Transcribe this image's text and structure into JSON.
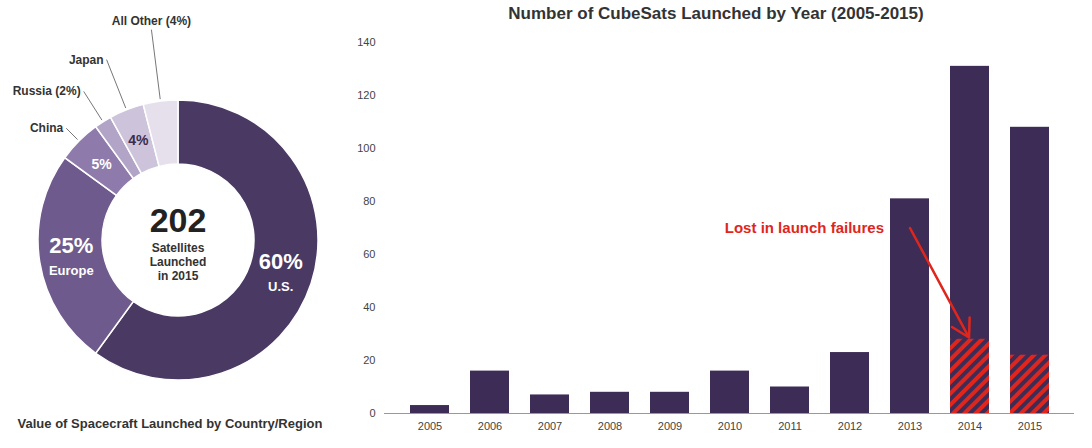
{
  "chart_data": [
    {
      "type": "donut",
      "title": "Value of Spacecraft Launched by Country/Region",
      "categories": [
        "U.S.",
        "Europe",
        "China",
        "Russia (2%)",
        "Japan",
        "All Other (4%)"
      ],
      "values": [
        60,
        25,
        5,
        2,
        4,
        4
      ],
      "value_labels": [
        "60%",
        "25%",
        "5%",
        null,
        "4%",
        null
      ],
      "data_labels": true,
      "colors": [
        "#4a3963",
        "#6e5a8c",
        "#8f7bab",
        "#b2a4c6",
        "#cdc3da",
        "#e6e0ed"
      ],
      "center_value": 202,
      "center_label": "Satellites Launched in 2015"
    },
    {
      "type": "bar",
      "title": "Number of CubeSats Launched by Year (2005-2015)",
      "categories": [
        "2005",
        "2006",
        "2007",
        "2008",
        "2009",
        "2010",
        "2011",
        "2012",
        "2013",
        "2014",
        "2015"
      ],
      "values": [
        3,
        16,
        7,
        8,
        8,
        16,
        10,
        23,
        81,
        131,
        108
      ],
      "color": "#3d2c55",
      "ylim": [
        0,
        140
      ],
      "yticks": [
        0,
        20,
        40,
        60,
        80,
        100,
        120,
        140
      ],
      "grid": false,
      "lost": {
        "name": "Lost in launch failures",
        "values": [
          null,
          null,
          null,
          null,
          null,
          null,
          null,
          null,
          null,
          28,
          22
        ],
        "color": "#e0261c"
      }
    }
  ]
}
